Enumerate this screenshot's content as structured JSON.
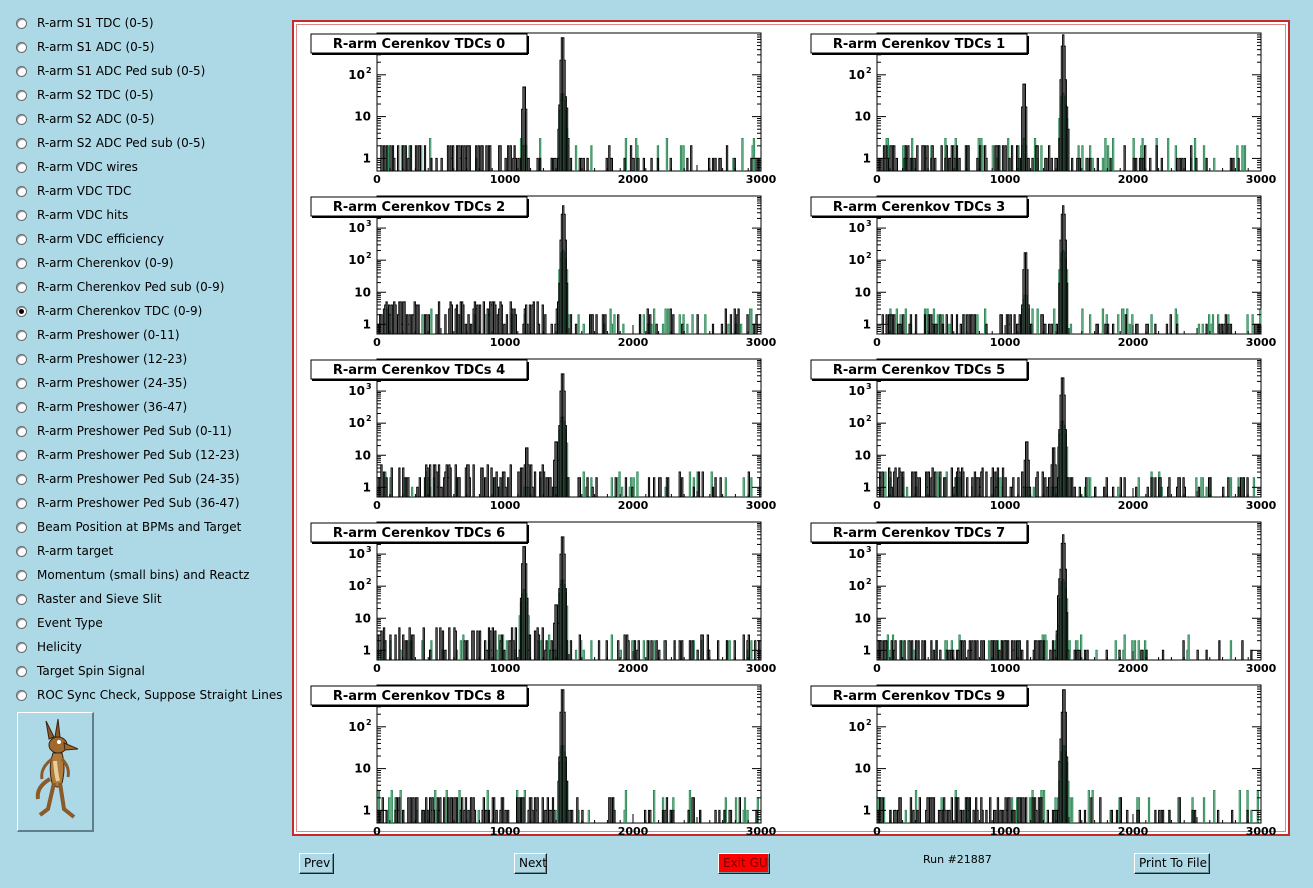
{
  "sidebar": {
    "items": [
      {
        "label": "R-arm S1 TDC (0-5)",
        "checked": false
      },
      {
        "label": "R-arm S1 ADC (0-5)",
        "checked": false
      },
      {
        "label": "R-arm S1 ADC Ped sub (0-5)",
        "checked": false
      },
      {
        "label": "R-arm S2 TDC (0-5)",
        "checked": false
      },
      {
        "label": "R-arm S2 ADC (0-5)",
        "checked": false
      },
      {
        "label": "R-arm S2 ADC Ped sub (0-5)",
        "checked": false
      },
      {
        "label": "R-arm VDC wires",
        "checked": false
      },
      {
        "label": "R-arm VDC TDC",
        "checked": false
      },
      {
        "label": "R-arm VDC hits",
        "checked": false
      },
      {
        "label": "R-arm VDC efficiency",
        "checked": false
      },
      {
        "label": "R-arm Cherenkov (0-9)",
        "checked": false
      },
      {
        "label": "R-arm Cherenkov Ped sub (0-9)",
        "checked": false
      },
      {
        "label": "R-arm Cherenkov TDC (0-9)",
        "checked": true
      },
      {
        "label": "R-arm Preshower (0-11)",
        "checked": false
      },
      {
        "label": "R-arm Preshower (12-23)",
        "checked": false
      },
      {
        "label": "R-arm Preshower (24-35)",
        "checked": false
      },
      {
        "label": "R-arm Preshower (36-47)",
        "checked": false
      },
      {
        "label": "R-arm Preshower Ped Sub (0-11)",
        "checked": false
      },
      {
        "label": "R-arm Preshower Ped Sub (12-23)",
        "checked": false
      },
      {
        "label": "R-arm Preshower Ped Sub (24-35)",
        "checked": false
      },
      {
        "label": "R-arm Preshower Ped Sub (36-47)",
        "checked": false
      },
      {
        "label": "Beam Position at BPMs and Target",
        "checked": false
      },
      {
        "label": "R-arm target",
        "checked": false
      },
      {
        "label": "Momentum (small bins) and Reactz",
        "checked": false
      },
      {
        "label": "Raster and Sieve Slit",
        "checked": false
      },
      {
        "label": "Event Type",
        "checked": false
      },
      {
        "label": "Helicity",
        "checked": false
      },
      {
        "label": "Target Spin Signal",
        "checked": false
      },
      {
        "label": "ROC Sync Check, Suppose Straight Lines",
        "checked": false
      }
    ]
  },
  "footer": {
    "prev_label": "Prev",
    "next_label": "Next",
    "exit_label": "Exit GUI",
    "run_label": "Run #21887",
    "print_label": "Print To File"
  },
  "colors": {
    "background": "#add8e6",
    "canvas_border": "#c62a2a",
    "exit_button": "#ff0000",
    "secondary_histogram": "#2e8b57"
  },
  "chart_data": [
    {
      "type": "histogram",
      "title": "R-arm Cerenkov TDCs 0",
      "xlim": [
        0,
        3000
      ],
      "ylim": [
        0.5,
        1000
      ],
      "log_y": true,
      "x_ticks": [
        0,
        1000,
        2000,
        3000
      ],
      "y_ticks": [
        1,
        10,
        100
      ],
      "peaks": [
        {
          "x": 1150,
          "y": 60
        },
        {
          "x": 1450,
          "y": 900
        },
        {
          "x": 1475,
          "y": 30
        }
      ],
      "bg_level": 1
    },
    {
      "type": "histogram",
      "title": "R-arm Cerenkov TDCs 1",
      "xlim": [
        0,
        3000
      ],
      "ylim": [
        0.5,
        1000
      ],
      "log_y": true,
      "x_ticks": [
        0,
        1000,
        2000,
        3000
      ],
      "y_ticks": [
        1,
        10,
        100
      ],
      "peaks": [
        {
          "x": 1150,
          "y": 70
        },
        {
          "x": 1455,
          "y": 900
        },
        {
          "x": 1480,
          "y": 20
        }
      ],
      "bg_level": 1
    },
    {
      "type": "histogram",
      "title": "R-arm Cerenkov TDCs 2",
      "xlim": [
        0,
        3000
      ],
      "ylim": [
        0.5,
        10000
      ],
      "log_y": true,
      "x_ticks": [
        0,
        1000,
        2000,
        3000
      ],
      "y_ticks": [
        1,
        10,
        100,
        1000
      ],
      "peaks": [
        {
          "x": 1455,
          "y": 5000
        },
        {
          "x": 1430,
          "y": 20
        }
      ],
      "bg_level": 3
    },
    {
      "type": "histogram",
      "title": "R-arm Cerenkov TDCs 3",
      "xlim": [
        0,
        3000
      ],
      "ylim": [
        0.5,
        10000
      ],
      "log_y": true,
      "x_ticks": [
        0,
        1000,
        2000,
        3000
      ],
      "y_ticks": [
        1,
        10,
        100,
        1000
      ],
      "peaks": [
        {
          "x": 1160,
          "y": 200
        },
        {
          "x": 1455,
          "y": 5000
        }
      ],
      "bg_level": 1
    },
    {
      "type": "histogram",
      "title": "R-arm Cerenkov TDCs 4",
      "xlim": [
        0,
        3000
      ],
      "ylim": [
        0.5,
        10000
      ],
      "log_y": true,
      "x_ticks": [
        0,
        1000,
        2000,
        3000
      ],
      "y_ticks": [
        1,
        10,
        100,
        1000
      ],
      "peaks": [
        {
          "x": 1450,
          "y": 4000
        },
        {
          "x": 1400,
          "y": 30
        },
        {
          "x": 1170,
          "y": 20
        }
      ],
      "bg_level": 3
    },
    {
      "type": "histogram",
      "title": "R-arm Cerenkov TDCs 5",
      "xlim": [
        0,
        3000
      ],
      "ylim": [
        0.5,
        10000
      ],
      "log_y": true,
      "x_ticks": [
        0,
        1000,
        2000,
        3000
      ],
      "y_ticks": [
        1,
        10,
        100,
        1000
      ],
      "peaks": [
        {
          "x": 1450,
          "y": 3000
        },
        {
          "x": 1380,
          "y": 20
        },
        {
          "x": 1170,
          "y": 30
        }
      ],
      "bg_level": 2
    },
    {
      "type": "histogram",
      "title": "R-arm Cerenkov TDCs 6",
      "xlim": [
        0,
        3000
      ],
      "ylim": [
        0.5,
        10000
      ],
      "log_y": true,
      "x_ticks": [
        0,
        1000,
        2000,
        3000
      ],
      "y_ticks": [
        1,
        10,
        100,
        1000
      ],
      "peaks": [
        {
          "x": 1150,
          "y": 2000
        },
        {
          "x": 1450,
          "y": 4000
        },
        {
          "x": 1400,
          "y": 30
        }
      ],
      "bg_level": 3
    },
    {
      "type": "histogram",
      "title": "R-arm Cerenkov TDCs 7",
      "xlim": [
        0,
        3000
      ],
      "ylim": [
        0.5,
        10000
      ],
      "log_y": true,
      "x_ticks": [
        0,
        1000,
        2000,
        3000
      ],
      "y_ticks": [
        1,
        10,
        100,
        1000
      ],
      "peaks": [
        {
          "x": 1455,
          "y": 4000
        },
        {
          "x": 1430,
          "y": 200
        }
      ],
      "bg_level": 1
    },
    {
      "type": "histogram",
      "title": "R-arm Cerenkov TDCs 8",
      "xlim": [
        0,
        3000
      ],
      "ylim": [
        0.5,
        1000
      ],
      "log_y": true,
      "x_ticks": [
        0,
        1000,
        2000,
        3000
      ],
      "y_ticks": [
        1,
        10,
        100
      ],
      "peaks": [
        {
          "x": 1450,
          "y": 900
        },
        {
          "x": 1470,
          "y": 20
        }
      ],
      "bg_level": 1
    },
    {
      "type": "histogram",
      "title": "R-arm Cerenkov TDCs 9",
      "xlim": [
        0,
        3000
      ],
      "ylim": [
        0.5,
        1000
      ],
      "log_y": true,
      "x_ticks": [
        0,
        1000,
        2000,
        3000
      ],
      "y_ticks": [
        1,
        10,
        100
      ],
      "peaks": [
        {
          "x": 1440,
          "y": 60
        },
        {
          "x": 1460,
          "y": 900
        }
      ],
      "bg_level": 1
    }
  ]
}
